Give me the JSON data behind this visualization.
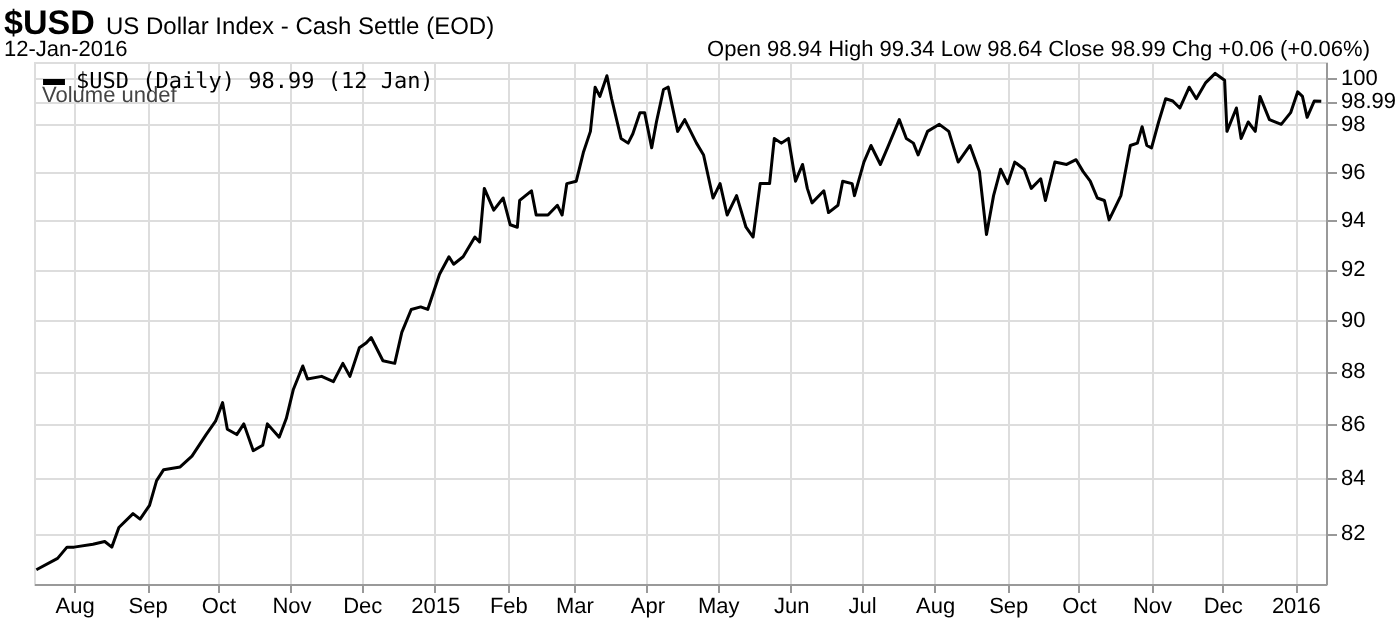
{
  "chart_data": {
    "type": "line",
    "title": "$USD",
    "subtitle": "US Dollar Index - Cash Settle (EOD)",
    "annotations": [
      "12-Jan-2016",
      "Open 98.94  High 99.34  Low 98.64  Close 98.99  Chg +0.06 (+0.06%)",
      "Volume undef"
    ],
    "series": [
      {
        "name": "$USD (Daily) 98.99 (12 Jan)",
        "color": "#000000",
        "x": [
          "2014-07-16",
          "2014-07-25",
          "2014-07-29",
          "2014-08-01",
          "2014-08-09",
          "2014-08-14",
          "2014-08-17",
          "2014-08-20",
          "2014-08-26",
          "2014-08-29",
          "2014-09-02",
          "2014-09-05",
          "2014-09-08",
          "2014-09-15",
          "2014-09-20",
          "2014-09-26",
          "2014-09-30",
          "2014-10-03",
          "2014-10-05",
          "2014-10-09",
          "2014-10-12",
          "2014-10-16",
          "2014-10-20",
          "2014-10-22",
          "2014-10-27",
          "2014-10-30",
          "2014-11-02",
          "2014-11-06",
          "2014-11-08",
          "2014-11-14",
          "2014-11-19",
          "2014-11-23",
          "2014-11-26",
          "2014-11-30",
          "2014-12-03",
          "2014-12-05",
          "2014-12-10",
          "2014-12-15",
          "2014-12-18",
          "2014-12-22",
          "2014-12-26",
          "2014-12-29",
          "2015-01-03",
          "2015-01-07",
          "2015-01-09",
          "2015-01-13",
          "2015-01-18",
          "2015-01-20",
          "2015-01-22",
          "2015-01-26",
          "2015-01-30",
          "2015-02-02",
          "2015-02-05",
          "2015-02-06",
          "2015-02-11",
          "2015-02-13",
          "2015-02-18",
          "2015-02-22",
          "2015-02-24",
          "2015-02-26",
          "2015-03-02",
          "2015-03-05",
          "2015-03-08",
          "2015-03-10",
          "2015-03-12",
          "2015-03-15",
          "2015-03-17",
          "2015-03-21",
          "2015-03-24",
          "2015-03-26",
          "2015-03-29",
          "2015-03-31",
          "2015-04-03",
          "2015-04-05",
          "2015-04-08",
          "2015-04-10",
          "2015-04-14",
          "2015-04-17",
          "2015-04-22",
          "2015-04-25",
          "2015-04-29",
          "2015-05-02",
          "2015-05-05",
          "2015-05-09",
          "2015-05-13",
          "2015-05-16",
          "2015-05-19",
          "2015-05-23",
          "2015-05-25",
          "2015-05-28",
          "2015-05-31",
          "2015-06-03",
          "2015-06-06",
          "2015-06-08",
          "2015-06-10",
          "2015-06-15",
          "2015-06-17",
          "2015-06-21",
          "2015-06-23",
          "2015-06-27",
          "2015-06-28",
          "2015-07-02",
          "2015-07-05",
          "2015-07-09",
          "2015-07-12",
          "2015-07-17",
          "2015-07-20",
          "2015-07-23",
          "2015-07-25",
          "2015-07-29",
          "2015-08-03",
          "2015-08-07",
          "2015-08-11",
          "2015-08-16",
          "2015-08-20",
          "2015-08-23",
          "2015-08-26",
          "2015-08-29",
          "2015-09-01",
          "2015-09-04",
          "2015-09-08",
          "2015-09-11",
          "2015-09-15",
          "2015-09-17",
          "2015-09-21",
          "2015-09-26",
          "2015-09-30",
          "2015-10-03",
          "2015-10-06",
          "2015-10-09",
          "2015-10-12",
          "2015-10-14",
          "2015-10-17",
          "2015-10-19",
          "2015-10-23",
          "2015-10-26",
          "2015-10-28",
          "2015-10-30",
          "2015-11-01",
          "2015-11-04",
          "2015-11-07",
          "2015-11-10",
          "2015-11-13",
          "2015-11-17",
          "2015-11-20",
          "2015-11-24",
          "2015-11-28",
          "2015-12-02",
          "2015-12-03",
          "2015-12-07",
          "2015-12-09",
          "2015-12-12",
          "2015-12-15",
          "2015-12-17",
          "2015-12-21",
          "2015-12-26",
          "2015-12-30",
          "2016-01-02",
          "2016-01-04",
          "2016-01-06",
          "2016-01-09",
          "2016-01-12"
        ],
        "values": [
          80.7,
          81.1,
          81.5,
          81.5,
          81.6,
          81.7,
          81.5,
          82.2,
          82.7,
          82.5,
          83.0,
          83.9,
          84.3,
          84.4,
          84.8,
          85.6,
          86.1,
          86.8,
          85.8,
          85.6,
          86.0,
          85.0,
          85.2,
          86.0,
          85.5,
          86.2,
          87.3,
          88.2,
          87.7,
          87.8,
          87.6,
          88.3,
          87.8,
          88.9,
          89.1,
          89.3,
          88.4,
          88.3,
          89.5,
          90.4,
          90.5,
          90.4,
          91.8,
          92.5,
          92.2,
          92.5,
          93.3,
          93.1,
          95.3,
          94.4,
          94.9,
          93.8,
          93.7,
          94.8,
          95.2,
          94.2,
          94.2,
          94.6,
          94.2,
          95.5,
          95.6,
          96.8,
          97.7,
          99.6,
          99.2,
          100.1,
          99.1,
          97.4,
          97.2,
          97.6,
          98.5,
          98.5,
          97.0,
          98.1,
          99.5,
          99.6,
          97.7,
          98.2,
          97.2,
          96.7,
          94.9,
          95.5,
          94.2,
          95.0,
          93.7,
          93.3,
          95.5,
          95.5,
          97.4,
          97.2,
          97.4,
          95.6,
          96.3,
          95.3,
          94.7,
          95.2,
          94.3,
          94.6,
          95.6,
          95.5,
          95.0,
          96.4,
          97.1,
          96.3,
          97.0,
          98.2,
          97.4,
          97.2,
          96.7,
          97.7,
          98.0,
          97.7,
          96.4,
          97.1,
          96.0,
          93.4,
          95.0,
          96.1,
          95.5,
          96.4,
          96.1,
          95.3,
          95.7,
          94.8,
          96.4,
          96.3,
          96.5,
          96.0,
          95.6,
          94.9,
          94.8,
          94.0,
          94.6,
          95.0,
          97.1,
          97.2,
          97.9,
          97.1,
          97.0,
          98.1,
          99.1,
          99.0,
          98.7,
          99.6,
          99.1,
          99.8,
          100.2,
          99.9,
          97.7,
          98.7,
          97.4,
          98.1,
          97.7,
          99.2,
          98.2,
          98.0,
          98.5,
          99.4,
          99.2,
          98.3,
          99.0,
          98.99
        ]
      }
    ],
    "xlim": [
      "2014-07-15",
      "2016-01-14"
    ],
    "xticks": [
      {
        "value": "2014-08-01",
        "label": "Aug"
      },
      {
        "value": "2014-09-01",
        "label": "Sep"
      },
      {
        "value": "2014-10-01",
        "label": "Oct"
      },
      {
        "value": "2014-11-01",
        "label": "Nov"
      },
      {
        "value": "2014-12-01",
        "label": "Dec"
      },
      {
        "value": "2015-01-01",
        "label": "2015"
      },
      {
        "value": "2015-02-01",
        "label": "Feb"
      },
      {
        "value": "2015-03-01",
        "label": "Mar"
      },
      {
        "value": "2015-04-01",
        "label": "Apr"
      },
      {
        "value": "2015-05-01",
        "label": "May"
      },
      {
        "value": "2015-06-01",
        "label": "Jun"
      },
      {
        "value": "2015-07-01",
        "label": "Jul"
      },
      {
        "value": "2015-08-01",
        "label": "Aug"
      },
      {
        "value": "2015-09-01",
        "label": "Sep"
      },
      {
        "value": "2015-10-01",
        "label": "Oct"
      },
      {
        "value": "2015-11-01",
        "label": "Nov"
      },
      {
        "value": "2015-12-01",
        "label": "Dec"
      },
      {
        "value": "2016-01-01",
        "label": "2016"
      }
    ],
    "ylim": [
      80.2,
      100.7
    ],
    "yticks": [
      82,
      84,
      86,
      88,
      90,
      92,
      94,
      96,
      98,
      98.99,
      100
    ],
    "log": true,
    "grid": true,
    "legend": "top left",
    "marker": "none",
    "line_style": "solid"
  }
}
